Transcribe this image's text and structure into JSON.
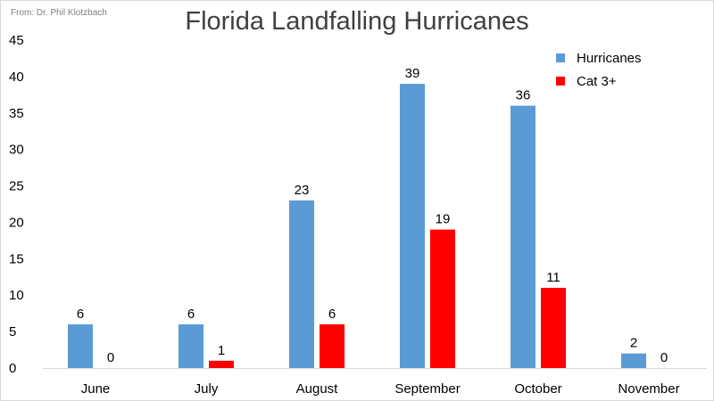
{
  "source_note": "From: Dr. Phil Klotzbach",
  "chart_data": {
    "type": "bar",
    "title": "Florida Landfalling Hurricanes",
    "categories": [
      "June",
      "July",
      "August",
      "September",
      "October",
      "November"
    ],
    "series": [
      {
        "name": "Hurricanes",
        "values": [
          6,
          6,
          23,
          39,
          36,
          2
        ],
        "color": "#5b9bd5"
      },
      {
        "name": "Cat 3+",
        "values": [
          0,
          1,
          6,
          19,
          11,
          0
        ],
        "color": "#ff0000"
      }
    ],
    "ylim": [
      0,
      45
    ],
    "yticks": [
      0,
      5,
      10,
      15,
      20,
      25,
      30,
      35,
      40,
      45
    ],
    "xlabel": "",
    "ylabel": "",
    "grid": false,
    "legend_position": "top-right",
    "data_labels": true
  }
}
